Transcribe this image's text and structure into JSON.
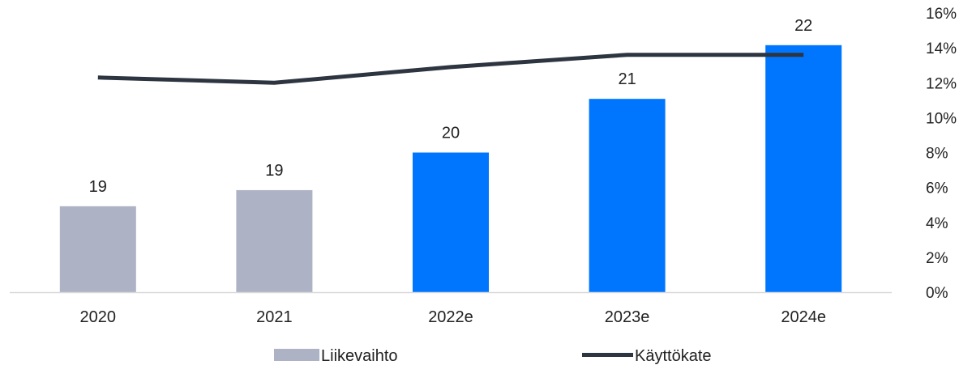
{
  "chart_data": {
    "type": "bar",
    "categories": [
      "2020",
      "2021",
      "2022e",
      "2023e",
      "2024e"
    ],
    "series": [
      {
        "name": "Liikevaihto",
        "type": "bar",
        "values": [
          19.0,
          19.3,
          20.0,
          21.0,
          22.0
        ],
        "labels": [
          "19",
          "19",
          "20",
          "21",
          "22"
        ],
        "colors": [
          "#adb2c4",
          "#adb2c4",
          "#0076ff",
          "#0076ff",
          "#0076ff"
        ]
      },
      {
        "name": "Käyttökate",
        "type": "line",
        "axis": "right",
        "values": [
          12.3,
          12.0,
          12.9,
          13.6,
          13.6
        ],
        "color": "#2d3540"
      }
    ],
    "y_left": {
      "visible": false,
      "range": [
        17.4,
        22.6
      ]
    },
    "y_right": {
      "range": [
        0,
        16
      ],
      "ticks": [
        "0%",
        "2%",
        "4%",
        "6%",
        "8%",
        "10%",
        "12%",
        "14%",
        "16%"
      ]
    },
    "grid": false,
    "legend": {
      "position": "bottom",
      "items": [
        {
          "label": "Liikevaihto",
          "symbol": "bar",
          "color": "#adb2c4"
        },
        {
          "label": "Käyttökate",
          "symbol": "line",
          "color": "#2d3540"
        }
      ]
    },
    "baseline_color": "#d9d9d9"
  }
}
